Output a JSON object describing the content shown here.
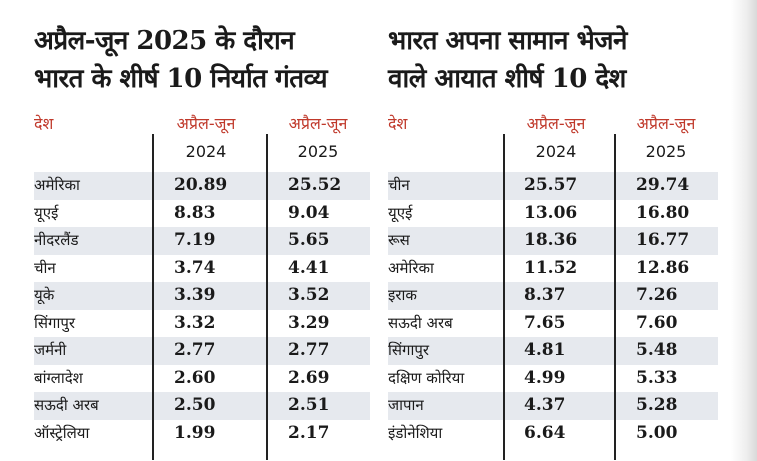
{
  "left": {
    "title_line1": "अप्रैल-जून 2025 के दौरान",
    "title_line2": "भारत के शीर्ष 10 निर्यात गंतव्य",
    "col_country": "देश",
    "col_a": "अप्रैल-जून",
    "col_a_year": "2024",
    "col_b": "अप्रैल-जून",
    "col_b_year": "2025",
    "rows": [
      {
        "country": "अमेरिका",
        "a": "20.89",
        "b": "25.52"
      },
      {
        "country": "यूएई",
        "a": "8.83",
        "b": "9.04"
      },
      {
        "country": "नीदरलैंड",
        "a": "7.19",
        "b": "5.65"
      },
      {
        "country": "चीन",
        "a": "3.74",
        "b": "4.41"
      },
      {
        "country": "यूके",
        "a": "3.39",
        "b": "3.52"
      },
      {
        "country": "सिंगापुर",
        "a": "3.32",
        "b": "3.29"
      },
      {
        "country": "जर्मनी",
        "a": "2.77",
        "b": "2.77"
      },
      {
        "country": "बांग्लादेश",
        "a": "2.60",
        "b": "2.69"
      },
      {
        "country": "सऊदी अरब",
        "a": "2.50",
        "b": "2.51"
      },
      {
        "country": "ऑस्ट्रेलिया",
        "a": "1.99",
        "b": "2.17"
      }
    ]
  },
  "right": {
    "title_line1": "भारत अपना सामान भेजने",
    "title_line2": "वाले आयात शीर्ष 10 देश",
    "col_country": "देश",
    "col_a": "अप्रैल-जून",
    "col_a_year": "2024",
    "col_b": "अप्रैल-जून",
    "col_b_year": "2025",
    "rows": [
      {
        "country": "चीन",
        "a": "25.57",
        "b": "29.74"
      },
      {
        "country": "यूएई",
        "a": "13.06",
        "b": "16.80"
      },
      {
        "country": "रूस",
        "a": "18.36",
        "b": "16.77"
      },
      {
        "country": "अमेरिका",
        "a": "11.52",
        "b": "12.86"
      },
      {
        "country": "इराक",
        "a": "8.37",
        "b": "7.26"
      },
      {
        "country": "सऊदी अरब",
        "a": "7.65",
        "b": "7.60"
      },
      {
        "country": "सिंगापुर",
        "a": "4.81",
        "b": "5.48"
      },
      {
        "country": "दक्षिण कोरिया",
        "a": "4.99",
        "b": "5.33"
      },
      {
        "country": "जापान",
        "a": "4.37",
        "b": "5.28"
      },
      {
        "country": "इंडोनेशिया",
        "a": "6.64",
        "b": "5.00"
      }
    ]
  }
}
